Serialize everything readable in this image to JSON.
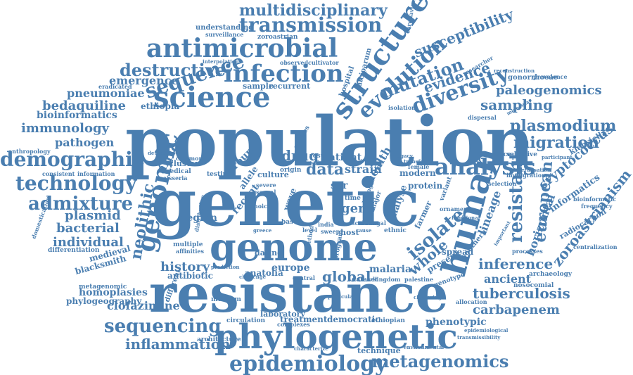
{
  "palette": {
    "word": "#4a7eb0"
  },
  "words": [
    {
      "text": "population"
    },
    {
      "text": "genetic"
    },
    {
      "text": "resistance"
    },
    {
      "text": "genome"
    },
    {
      "text": "phylogenetic"
    },
    {
      "text": "human"
    },
    {
      "text": "structure"
    },
    {
      "text": "genomic"
    },
    {
      "text": "science"
    },
    {
      "text": "infection"
    },
    {
      "text": "antimicrobial"
    },
    {
      "text": "evolution"
    },
    {
      "text": "sequence"
    },
    {
      "text": "diversity"
    },
    {
      "text": "analysis"
    },
    {
      "text": "epidemiology"
    },
    {
      "text": "metagenomics"
    },
    {
      "text": "sequencing"
    },
    {
      "text": "technology"
    },
    {
      "text": "demographic"
    },
    {
      "text": "admixture"
    },
    {
      "text": "transmission"
    },
    {
      "text": "multidisciplinary"
    },
    {
      "text": "destructive"
    },
    {
      "text": "mutation"
    },
    {
      "text": "susceptibility"
    },
    {
      "text": "evidence"
    },
    {
      "text": "paleogenomics"
    },
    {
      "text": "sampling"
    },
    {
      "text": "plasmodium"
    },
    {
      "text": "migration"
    },
    {
      "text": "resistant"
    },
    {
      "text": "european"
    },
    {
      "text": "cryptococcus"
    },
    {
      "text": "zoroastrianism"
    },
    {
      "text": "inference"
    },
    {
      "text": "tuberculosis"
    },
    {
      "text": "carbapenem"
    },
    {
      "text": "ancient"
    },
    {
      "text": "phenotypic"
    },
    {
      "text": "inflammation"
    },
    {
      "text": "isolate"
    },
    {
      "text": "whole"
    },
    {
      "text": "lineage"
    },
    {
      "text": "horizontal"
    },
    {
      "text": "global"
    },
    {
      "text": "history"
    },
    {
      "text": "neolithic"
    },
    {
      "text": "africa"
    },
    {
      "text": "drug"
    },
    {
      "text": "data"
    },
    {
      "text": "strain"
    },
    {
      "text": "health"
    },
    {
      "text": "gene"
    },
    {
      "text": "plasmid"
    },
    {
      "text": "bacterial"
    },
    {
      "text": "individual"
    },
    {
      "text": "pathogen"
    },
    {
      "text": "immunology"
    },
    {
      "text": "bioinformatics"
    },
    {
      "text": "bedaquiline"
    },
    {
      "text": "pneumoniae"
    },
    {
      "text": "emergence"
    },
    {
      "text": "ethiopia"
    },
    {
      "text": "clofazimine"
    },
    {
      "text": "homoplasies"
    },
    {
      "text": "phylogeography"
    },
    {
      "text": "metagenomic"
    },
    {
      "text": "blacksmith"
    },
    {
      "text": "medieval"
    },
    {
      "text": "differentiation"
    },
    {
      "text": "region"
    },
    {
      "text": "antibiotic"
    },
    {
      "text": "different"
    },
    {
      "text": "europe"
    },
    {
      "text": "malaria"
    },
    {
      "text": "dating"
    },
    {
      "text": "anatolia"
    },
    {
      "text": "treatment"
    },
    {
      "text": "democratic"
    },
    {
      "text": "laboratory"
    },
    {
      "text": "technique"
    },
    {
      "text": "architecture"
    },
    {
      "text": "museum"
    },
    {
      "text": "recent"
    },
    {
      "text": "group"
    },
    {
      "text": "allele"
    },
    {
      "text": "patient"
    },
    {
      "text": "sar"
    },
    {
      "text": "modern"
    },
    {
      "text": "protein"
    },
    {
      "text": "farmer"
    },
    {
      "text": "present"
    },
    {
      "text": "spread"
    },
    {
      "text": "genotype"
    },
    {
      "text": "southern"
    },
    {
      "text": "informatics"
    },
    {
      "text": "radiocarbon"
    },
    {
      "text": "archaeology"
    },
    {
      "text": "nosocomial"
    },
    {
      "text": "klebsiella"
    },
    {
      "text": "virulence"
    },
    {
      "text": "selective"
    },
    {
      "text": "bioinformatic"
    },
    {
      "text": "frequency"
    },
    {
      "text": "centralization"
    },
    {
      "text": "gonorrhoeae"
    },
    {
      "text": "hospital"
    },
    {
      "text": "falciparum"
    },
    {
      "text": "coronavirus"
    },
    {
      "text": "researcher"
    },
    {
      "text": "understanding"
    },
    {
      "text": "zoroastrian"
    },
    {
      "text": "surveillance"
    },
    {
      "text": "observed"
    },
    {
      "text": "cultivator"
    },
    {
      "text": "sample"
    },
    {
      "text": "recurrent"
    },
    {
      "text": "eradicated"
    },
    {
      "text": "interpolation"
    },
    {
      "text": "cluster"
    },
    {
      "text": "medical"
    },
    {
      "text": "neisseria"
    },
    {
      "text": "common"
    },
    {
      "text": "detection"
    },
    {
      "text": "testing"
    },
    {
      "text": "culture"
    },
    {
      "text": "studies"
    },
    {
      "text": "result"
    },
    {
      "text": "viral"
    },
    {
      "text": "multiple"
    },
    {
      "text": "affinities"
    },
    {
      "text": "distribution"
    },
    {
      "text": "circulation"
    },
    {
      "text": "complexes"
    },
    {
      "text": "ethiopian"
    },
    {
      "text": "dataset"
    },
    {
      "text": "kingdom"
    },
    {
      "text": "palestine"
    },
    {
      "text": "allocation"
    },
    {
      "text": "clustering"
    },
    {
      "text": "epidemiological"
    },
    {
      "text": "transmissibility"
    },
    {
      "text": "environmental"
    },
    {
      "text": "characterize"
    },
    {
      "text": "particular"
    },
    {
      "text": "consistent"
    },
    {
      "text": "information"
    },
    {
      "text": "domestication"
    },
    {
      "text": "anthropology"
    },
    {
      "text": "dispersal"
    },
    {
      "text": "prevalence"
    },
    {
      "text": "reconstruction"
    },
    {
      "text": "participant"
    },
    {
      "text": "immigration"
    },
    {
      "text": "molecular"
    },
    {
      "text": "feralisation"
    },
    {
      "text": "variant"
    },
    {
      "text": "selection"
    },
    {
      "text": "ornament"
    },
    {
      "text": "legacy"
    },
    {
      "text": "transfer"
    },
    {
      "text": "female"
    },
    {
      "text": "isolation"
    },
    {
      "text": "processes"
    },
    {
      "text": "important"
    },
    {
      "text": "functional"
    },
    {
      "text": "host"
    },
    {
      "text": "wave"
    },
    {
      "text": "time"
    },
    {
      "text": "analyse"
    },
    {
      "text": "ethnic"
    },
    {
      "text": "india"
    },
    {
      "text": "sweep"
    },
    {
      "text": "based"
    },
    {
      "text": "central"
    },
    {
      "text": "greece"
    },
    {
      "text": "choice"
    },
    {
      "text": "prediction"
    },
    {
      "text": "challenge"
    },
    {
      "text": "program"
    },
    {
      "text": "method"
    },
    {
      "text": "origin"
    },
    {
      "text": "sexual"
    },
    {
      "text": "severe"
    },
    {
      "text": "lineages"
    },
    {
      "text": "fungal"
    },
    {
      "text": "major"
    },
    {
      "text": "level"
    },
    {
      "text": "scale"
    },
    {
      "text": "cause"
    }
  ]
}
